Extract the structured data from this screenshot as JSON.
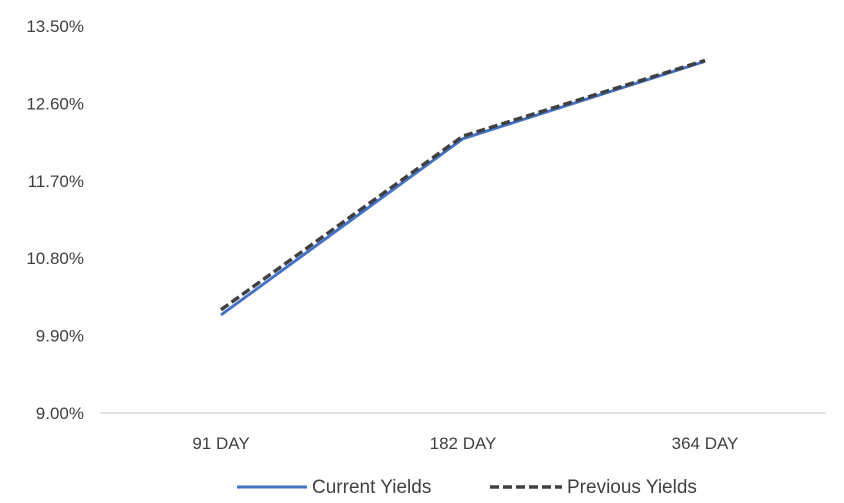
{
  "chart_data": {
    "type": "line",
    "title": "",
    "xlabel": "",
    "ylabel": "",
    "categories": [
      "91 DAY",
      "182 DAY",
      "364 DAY"
    ],
    "ylim": [
      9.0,
      13.5
    ],
    "yticks": [
      9.0,
      9.9,
      10.8,
      11.7,
      12.6,
      13.5
    ],
    "ytick_labels": [
      "9.00%",
      "9.90%",
      "10.80%",
      "11.70%",
      "12.60%",
      "13.50%"
    ],
    "grid": false,
    "legend_position": "bottom",
    "series": [
      {
        "name": "Current Yields",
        "values": [
          10.14,
          12.19,
          13.09
        ],
        "color": "#4472C4",
        "style": "solid"
      },
      {
        "name": "Previous Yields",
        "values": [
          10.2,
          12.22,
          13.1
        ],
        "color": "#404040",
        "style": "dashed"
      }
    ]
  }
}
